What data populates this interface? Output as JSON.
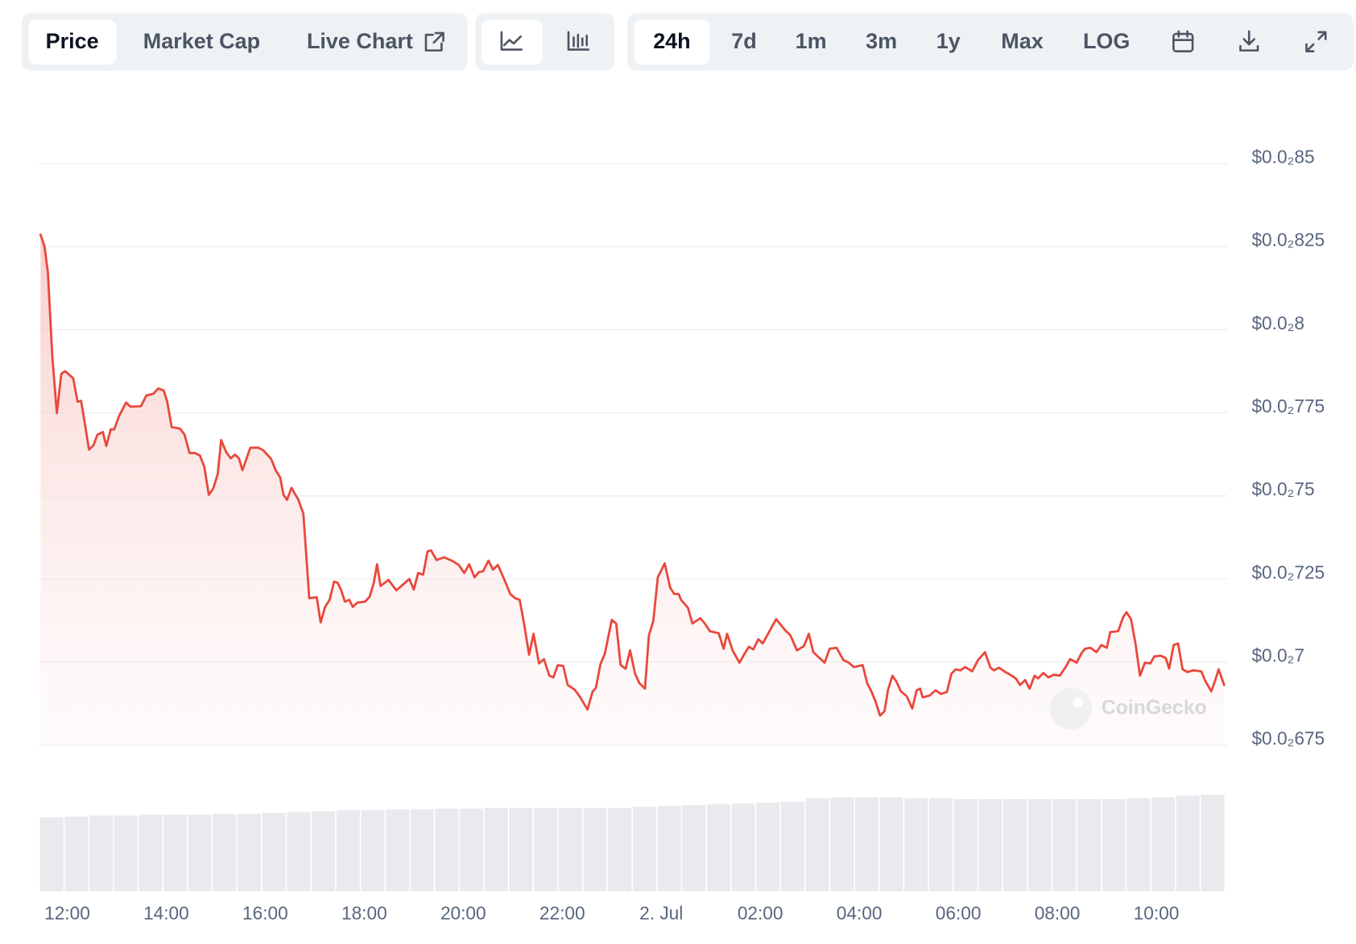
{
  "toolbar": {
    "tabs": [
      "Price",
      "Market Cap",
      "Live Chart"
    ],
    "ranges": [
      "24h",
      "7d",
      "1m",
      "3m",
      "1y",
      "Max",
      "LOG"
    ]
  },
  "chart_data": {
    "type": "area",
    "watermark": "CoinGecko",
    "color": "#e9483c",
    "x": [
      11.46,
      11.54,
      11.61,
      11.7,
      11.79,
      11.88,
      11.96,
      12.12,
      12.21,
      12.28,
      12.37,
      12.44,
      12.53,
      12.61,
      12.72,
      12.79,
      12.88,
      12.95,
      13.05,
      13.19,
      13.28,
      13.49,
      13.6,
      13.74,
      13.84,
      13.95,
      14.02,
      14.11,
      14.28,
      14.37,
      14.47,
      14.58,
      14.68,
      14.77,
      14.86,
      14.95,
      15.04,
      15.11,
      15.21,
      15.3,
      15.39,
      15.47,
      15.54,
      15.7,
      15.86,
      15.96,
      16.12,
      16.21,
      16.3,
      16.37,
      16.44,
      16.53,
      16.67,
      16.77,
      16.89,
      17.04,
      17.12,
      17.21,
      17.3,
      17.39,
      17.46,
      17.53,
      17.61,
      17.7,
      17.77,
      17.86,
      18.02,
      18.11,
      18.19,
      18.26,
      18.33,
      18.49,
      18.65,
      18.79,
      18.91,
      19.0,
      19.09,
      19.19,
      19.28,
      19.35,
      19.46,
      19.61,
      19.77,
      19.91,
      20.02,
      20.12,
      20.23,
      20.32,
      20.4,
      20.51,
      20.6,
      20.7,
      20.82,
      20.95,
      21.05,
      21.14,
      21.23,
      21.33,
      21.42,
      21.53,
      21.63,
      21.74,
      21.82,
      21.91,
      22.02,
      22.11,
      22.25,
      22.35,
      22.51,
      22.61,
      22.68,
      22.77,
      22.86,
      23.0,
      23.09,
      23.18,
      23.28,
      23.37,
      23.47,
      23.56,
      23.67,
      23.75,
      23.84,
      23.93,
      24.07,
      24.18,
      24.26,
      24.35,
      24.4,
      24.54,
      24.63,
      24.79,
      24.88,
      24.98,
      25.16,
      25.26,
      25.33,
      25.44,
      25.58,
      25.67,
      25.77,
      25.86,
      25.96,
      26.05,
      26.32,
      26.49,
      26.61,
      26.74,
      26.88,
      26.98,
      27.07,
      27.3,
      27.4,
      27.54,
      27.68,
      27.79,
      27.89,
      28.07,
      28.16,
      28.25,
      28.33,
      28.42,
      28.51,
      28.58,
      28.67,
      28.75,
      28.84,
      28.96,
      29.07,
      29.16,
      29.23,
      29.28,
      29.42,
      29.54,
      29.65,
      29.77,
      29.86,
      29.95,
      30.04,
      30.14,
      30.28,
      30.4,
      30.54,
      30.65,
      30.72,
      30.82,
      30.95,
      31.05,
      31.16,
      31.25,
      31.35,
      31.44,
      31.54,
      31.61,
      31.72,
      31.82,
      31.93,
      32.05,
      32.16,
      32.26,
      32.39,
      32.49,
      32.56,
      32.67,
      32.79,
      32.89,
      33.0,
      33.07,
      33.23,
      33.33,
      33.4,
      33.49,
      33.58,
      33.67,
      33.77,
      33.88,
      33.96,
      34.09,
      34.19,
      34.26,
      34.35,
      34.44,
      34.53,
      34.63,
      34.75,
      34.91,
      34.98,
      35.11,
      35.18,
      35.26,
      35.37
    ],
    "values": [
      0.008286,
      0.008252,
      0.008173,
      0.007919,
      0.007749,
      0.007867,
      0.007875,
      0.007854,
      0.007783,
      0.007786,
      0.007705,
      0.007639,
      0.007652,
      0.007684,
      0.007692,
      0.00765,
      0.0077,
      0.0077,
      0.007741,
      0.007781,
      0.007768,
      0.00777,
      0.007802,
      0.007807,
      0.007823,
      0.007817,
      0.007783,
      0.007707,
      0.007702,
      0.007684,
      0.007629,
      0.007629,
      0.007621,
      0.007587,
      0.007503,
      0.007522,
      0.007566,
      0.007668,
      0.007632,
      0.007613,
      0.007624,
      0.007613,
      0.007577,
      0.007645,
      0.007645,
      0.007637,
      0.007611,
      0.007577,
      0.007556,
      0.007503,
      0.007488,
      0.007524,
      0.007488,
      0.007446,
      0.007192,
      0.007195,
      0.007119,
      0.007166,
      0.007187,
      0.007242,
      0.007239,
      0.007218,
      0.007182,
      0.007187,
      0.007166,
      0.007179,
      0.007182,
      0.007197,
      0.007237,
      0.007294,
      0.007229,
      0.007247,
      0.007216,
      0.007234,
      0.00725,
      0.007218,
      0.007268,
      0.007263,
      0.007333,
      0.007336,
      0.007307,
      0.007315,
      0.007305,
      0.007292,
      0.007268,
      0.007294,
      0.007255,
      0.007271,
      0.007273,
      0.007305,
      0.007278,
      0.007292,
      0.007252,
      0.007205,
      0.007192,
      0.007187,
      0.007114,
      0.007022,
      0.007085,
      0.006996,
      0.007009,
      0.006959,
      0.006954,
      0.006991,
      0.006988,
      0.006931,
      0.006917,
      0.006897,
      0.006857,
      0.00691,
      0.006923,
      0.006993,
      0.007025,
      0.007127,
      0.007116,
      0.006991,
      0.00698,
      0.007035,
      0.006965,
      0.006936,
      0.00692,
      0.00708,
      0.007124,
      0.007255,
      0.007297,
      0.007224,
      0.007205,
      0.007205,
      0.007187,
      0.007163,
      0.007116,
      0.007132,
      0.007116,
      0.007093,
      0.007087,
      0.00704,
      0.007085,
      0.007035,
      0.006998,
      0.007022,
      0.007046,
      0.007038,
      0.007069,
      0.007056,
      0.007129,
      0.007098,
      0.00708,
      0.007035,
      0.007048,
      0.007085,
      0.00703,
      0.006998,
      0.00704,
      0.007043,
      0.007006,
      0.006998,
      0.006985,
      0.006991,
      0.006936,
      0.00691,
      0.006881,
      0.006839,
      0.006852,
      0.006917,
      0.006959,
      0.006941,
      0.006912,
      0.006897,
      0.00686,
      0.006915,
      0.00692,
      0.006894,
      0.006899,
      0.006915,
      0.006904,
      0.00691,
      0.006965,
      0.006978,
      0.006975,
      0.006985,
      0.006972,
      0.007006,
      0.00703,
      0.006983,
      0.006975,
      0.006983,
      0.00697,
      0.006962,
      0.006951,
      0.006931,
      0.006946,
      0.00692,
      0.006959,
      0.006951,
      0.006967,
      0.006954,
      0.006962,
      0.006959,
      0.006983,
      0.007009,
      0.006998,
      0.007027,
      0.00704,
      0.007043,
      0.00703,
      0.007051,
      0.007043,
      0.00709,
      0.007093,
      0.007135,
      0.00715,
      0.007129,
      0.007056,
      0.006959,
      0.006998,
      0.006996,
      0.007017,
      0.007019,
      0.007012,
      0.00698,
      0.007051,
      0.007056,
      0.006978,
      0.00697,
      0.006975,
      0.006972,
      0.006946,
      0.006912,
      0.006941,
      0.006978,
      0.006931
    ],
    "xlim": [
      11.45,
      35.4
    ],
    "xticks": [
      {
        "value": 12,
        "label": "12:00"
      },
      {
        "value": 14,
        "label": "14:00"
      },
      {
        "value": 16,
        "label": "16:00"
      },
      {
        "value": 18,
        "label": "18:00"
      },
      {
        "value": 20,
        "label": "20:00"
      },
      {
        "value": 22,
        "label": "22:00"
      },
      {
        "value": 24,
        "label": "2. Jul"
      },
      {
        "value": 26,
        "label": "02:00"
      },
      {
        "value": 28,
        "label": "04:00"
      },
      {
        "value": 30,
        "label": "06:00"
      },
      {
        "value": 32,
        "label": "08:00"
      },
      {
        "value": 34,
        "label": "10:00"
      }
    ],
    "ylim": [
      0.00675,
      0.0085
    ],
    "yticks": [
      {
        "value": 0.0085,
        "label": "$0.0₂85"
      },
      {
        "value": 0.00825,
        "label": "$0.0₂825"
      },
      {
        "value": 0.008,
        "label": "$0.0₂8"
      },
      {
        "value": 0.00775,
        "label": "$0.0₂775"
      },
      {
        "value": 0.0075,
        "label": "$0.0₂75"
      },
      {
        "value": 0.00725,
        "label": "$0.0₂725"
      },
      {
        "value": 0.007,
        "label": "$0.0₂7"
      },
      {
        "value": 0.00675,
        "label": "$0.0₂675"
      }
    ],
    "grid": true,
    "volume": {
      "color": "#e9eaee",
      "values": [
        85,
        86,
        87,
        87,
        88,
        88,
        88,
        89,
        89,
        90,
        91,
        92,
        93,
        93,
        94,
        94,
        95,
        95,
        96,
        96,
        96,
        96,
        96,
        96,
        97,
        98,
        99,
        100,
        101,
        102,
        103,
        107,
        108,
        108,
        108,
        107,
        107,
        106,
        106,
        106,
        106,
        106,
        106,
        106,
        107,
        108,
        110,
        111
      ]
    }
  }
}
